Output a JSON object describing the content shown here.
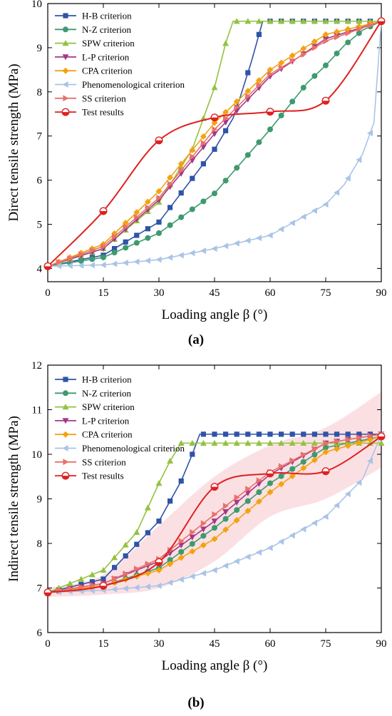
{
  "figure": {
    "caption_a": "(a)",
    "caption_b": "(b)"
  },
  "series_style": [
    {
      "name": "H-B criterion",
      "color": "#2f53a6",
      "marker": "square"
    },
    {
      "name": "N-Z criterion",
      "color": "#3e9a6e",
      "marker": "circle"
    },
    {
      "name": "SPW criterion",
      "color": "#93c240",
      "marker": "triangle-up"
    },
    {
      "name": "L-P criterion",
      "color": "#a3388a",
      "marker": "triangle-down"
    },
    {
      "name": "CPA criterion",
      "color": "#f2a30f",
      "marker": "diamond"
    },
    {
      "name": "Phenomenological criterion",
      "color": "#a9c4e6",
      "marker": "triangle-left"
    },
    {
      "name": "SS criterion",
      "color": "#e8716a",
      "marker": "triangle-right"
    },
    {
      "name": "Test results",
      "color": "#e02020",
      "marker": "ball"
    }
  ],
  "chart_data": [
    {
      "type": "line",
      "ylabel": "Direct tensile strength (MPa)",
      "xlabel": "Loading angle β (°)",
      "xlim": [
        0,
        90
      ],
      "ylim": [
        3.7,
        10
      ],
      "xticks": [
        0,
        15,
        30,
        45,
        60,
        75,
        90
      ],
      "yticks": [
        4,
        5,
        6,
        7,
        8,
        9,
        10
      ],
      "legend": "top-left",
      "grid": false,
      "series": [
        {
          "name": "H-B criterion",
          "x": [
            0,
            15,
            30,
            45,
            50,
            52,
            55,
            58,
            90
          ],
          "y": [
            4.05,
            4.3,
            5.05,
            6.7,
            7.4,
            7.9,
            8.7,
            9.6,
            9.6
          ]
        },
        {
          "name": "N-Z criterion",
          "x": [
            0,
            15,
            30,
            45,
            60,
            70,
            75,
            80,
            85,
            90
          ],
          "y": [
            4.05,
            4.25,
            4.8,
            5.7,
            7.15,
            8.2,
            8.6,
            9.05,
            9.4,
            9.6
          ]
        },
        {
          "name": "SPW criterion",
          "x": [
            0,
            15,
            30,
            39,
            45,
            48,
            50,
            90
          ],
          "y": [
            4.05,
            4.45,
            5.5,
            6.7,
            8.1,
            9.1,
            9.6,
            9.6
          ]
        },
        {
          "name": "L-P criterion",
          "x": [
            0,
            15,
            30,
            45,
            60,
            75,
            90
          ],
          "y": [
            4.05,
            4.45,
            5.55,
            7.05,
            8.35,
            9.2,
            9.6
          ]
        },
        {
          "name": "CPA criterion",
          "x": [
            0,
            15,
            30,
            45,
            60,
            75,
            90
          ],
          "y": [
            4.05,
            4.55,
            5.75,
            7.3,
            8.5,
            9.3,
            9.6
          ]
        },
        {
          "name": "Phenomenological criterion",
          "x": [
            0,
            15,
            30,
            45,
            60,
            75,
            80,
            85,
            88,
            90
          ],
          "y": [
            4.05,
            4.08,
            4.2,
            4.45,
            4.75,
            5.45,
            5.9,
            6.6,
            7.3,
            9.6
          ]
        },
        {
          "name": "SS criterion",
          "x": [
            0,
            15,
            30,
            45,
            60,
            75,
            90
          ],
          "y": [
            4.05,
            4.5,
            5.6,
            7.15,
            8.4,
            9.15,
            9.6
          ]
        },
        {
          "name": "Test results",
          "x": [
            0,
            15,
            30,
            45,
            60,
            75,
            90
          ],
          "y": [
            4.05,
            5.3,
            6.9,
            7.42,
            7.55,
            7.8,
            9.6
          ]
        }
      ]
    },
    {
      "type": "line",
      "ylabel": "Indirect tensile strength (MPa)",
      "xlabel": "Loading angle β (°)",
      "xlim": [
        0,
        90
      ],
      "ylim": [
        6,
        12
      ],
      "xticks": [
        0,
        15,
        30,
        45,
        60,
        75,
        90
      ],
      "yticks": [
        6,
        7,
        8,
        9,
        10,
        11,
        12
      ],
      "legend": "top-left",
      "grid": false,
      "band": {
        "x": [
          0,
          15,
          30,
          45,
          60,
          75,
          90
        ],
        "lower": [
          6.8,
          6.85,
          7.0,
          7.6,
          8.6,
          9.0,
          9.7
        ],
        "upper": [
          7.0,
          7.3,
          8.4,
          9.5,
          10.2,
          10.6,
          11.4
        ]
      },
      "series": [
        {
          "name": "H-B criterion",
          "x": [
            0,
            15,
            30,
            36,
            39,
            41,
            90
          ],
          "y": [
            6.9,
            7.2,
            8.5,
            9.4,
            10.0,
            10.45,
            10.45
          ]
        },
        {
          "name": "N-Z criterion",
          "x": [
            0,
            15,
            30,
            45,
            60,
            75,
            90
          ],
          "y": [
            6.9,
            7.05,
            7.45,
            8.35,
            9.35,
            10.15,
            10.4
          ]
        },
        {
          "name": "SPW criterion",
          "x": [
            0,
            15,
            24,
            30,
            33,
            36,
            90
          ],
          "y": [
            6.9,
            7.4,
            8.25,
            9.35,
            9.85,
            10.25,
            10.25
          ]
        },
        {
          "name": "L-P criterion",
          "x": [
            0,
            15,
            30,
            45,
            60,
            75,
            90
          ],
          "y": [
            6.9,
            7.1,
            7.6,
            8.5,
            9.55,
            10.25,
            10.45
          ]
        },
        {
          "name": "CPA criterion",
          "x": [
            0,
            15,
            30,
            45,
            60,
            75,
            90
          ],
          "y": [
            6.9,
            7.05,
            7.4,
            8.1,
            9.15,
            10.05,
            10.4
          ]
        },
        {
          "name": "Phenomenological criterion",
          "x": [
            0,
            15,
            30,
            45,
            60,
            75,
            85,
            90
          ],
          "y": [
            6.9,
            6.95,
            7.05,
            7.4,
            7.9,
            8.6,
            9.45,
            10.45
          ]
        },
        {
          "name": "SS criterion",
          "x": [
            0,
            15,
            30,
            45,
            60,
            75,
            90
          ],
          "y": [
            6.9,
            7.1,
            7.65,
            8.65,
            9.6,
            10.25,
            10.45
          ]
        },
        {
          "name": "Test results",
          "x": [
            0,
            15,
            30,
            45,
            60,
            75,
            90
          ],
          "y": [
            6.9,
            7.05,
            7.58,
            9.27,
            9.57,
            9.62,
            10.4
          ]
        }
      ]
    }
  ]
}
